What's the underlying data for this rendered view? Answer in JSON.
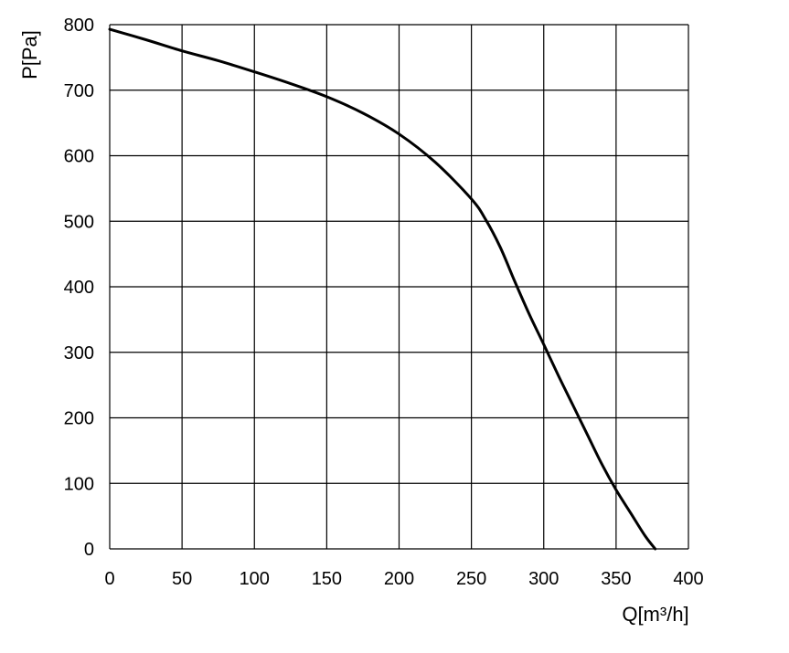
{
  "chart_data": {
    "type": "line",
    "title": "",
    "xlabel": "Q[m³/h]",
    "ylabel": "P[Pa]",
    "xlim": [
      0,
      400
    ],
    "ylim": [
      0,
      800
    ],
    "x_ticks": [
      0,
      50,
      100,
      150,
      200,
      250,
      300,
      350,
      400
    ],
    "y_ticks": [
      0,
      100,
      200,
      300,
      400,
      500,
      600,
      700,
      800
    ],
    "x_tick_labels": [
      "0",
      "50",
      "100",
      "150",
      "200",
      "250",
      "300",
      "350",
      "400"
    ],
    "y_tick_labels": [
      "0",
      "100",
      "200",
      "300",
      "400",
      "500",
      "600",
      "700",
      "800"
    ],
    "grid": true,
    "legend": "none",
    "colors": {
      "line": "#000000",
      "grid": "#000000",
      "background": "#ffffff"
    },
    "series": [
      {
        "x": [
          0,
          25,
          50,
          75,
          100,
          125,
          150,
          175,
          200,
          225,
          250,
          260,
          270,
          280,
          290,
          300,
          310,
          320,
          330,
          340,
          350,
          360,
          370,
          377
        ],
        "y": [
          793,
          777,
          760,
          745,
          728,
          710,
          690,
          665,
          633,
          590,
          534,
          502,
          460,
          408,
          358,
          312,
          265,
          220,
          175,
          130,
          90,
          55,
          20,
          0
        ]
      }
    ]
  }
}
